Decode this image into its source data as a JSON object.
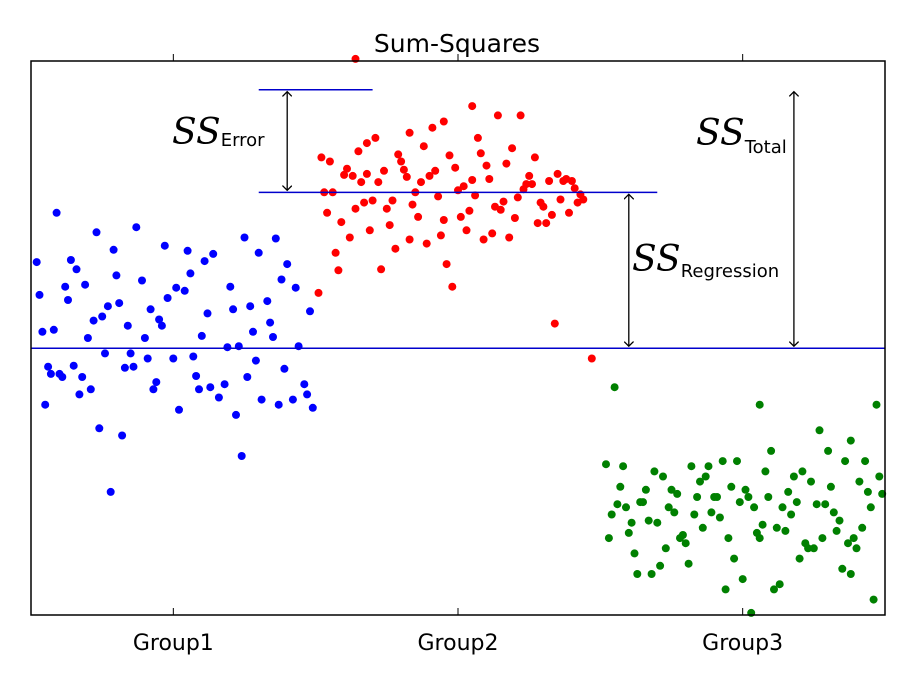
{
  "chart_data": {
    "type": "scatter",
    "title": "Sum-Squares",
    "xlabel": "",
    "ylabel": "",
    "categories": [
      "Group1",
      "Group2",
      "Group3"
    ],
    "xlim": [
      0,
      3
    ],
    "ylim": [
      -2.6,
      2.8
    ],
    "grid": false,
    "legend": "none",
    "grand_mean": 0.0,
    "group2_mean": 1.52,
    "group2_error_ref": 2.52,
    "series": [
      {
        "color": "#0000ff",
        "points": [
          [
            0.03,
            0.52
          ],
          [
            0.08,
            0.18
          ],
          [
            0.14,
            0.86
          ],
          [
            0.19,
            0.62
          ],
          [
            0.23,
            1.13
          ],
          [
            0.27,
            0.41
          ],
          [
            0.05,
            -0.55
          ],
          [
            0.11,
            -0.28
          ],
          [
            0.16,
            0.77
          ],
          [
            0.21,
            -0.4
          ],
          [
            0.25,
            0.31
          ],
          [
            0.29,
            0.96
          ],
          [
            0.33,
            -0.19
          ],
          [
            0.37,
            1.18
          ],
          [
            0.4,
            0.1
          ],
          [
            0.44,
            -0.33
          ],
          [
            0.48,
            0.49
          ],
          [
            0.52,
            -0.6
          ],
          [
            0.56,
            0.73
          ],
          [
            0.6,
            0.12
          ],
          [
            0.64,
            0.92
          ],
          [
            0.68,
            -0.35
          ],
          [
            0.71,
            0.38
          ],
          [
            0.75,
            1.08
          ],
          [
            0.79,
            -0.12
          ],
          [
            0.83,
            0.46
          ],
          [
            0.87,
            -0.55
          ],
          [
            0.9,
            0.82
          ],
          [
            0.94,
            0.02
          ],
          [
            0.98,
            0.36
          ],
          [
            0.07,
            -0.25
          ],
          [
            0.12,
            0.6
          ],
          [
            0.17,
            -0.45
          ],
          [
            0.22,
            0.27
          ],
          [
            0.26,
            -0.05
          ],
          [
            0.31,
            0.44
          ],
          [
            0.35,
            -0.05
          ],
          [
            0.39,
            0.66
          ],
          [
            0.43,
            -0.4
          ],
          [
            0.46,
            0.22
          ],
          [
            0.5,
            -0.1
          ],
          [
            0.54,
            0.56
          ],
          [
            0.58,
            -0.27
          ],
          [
            0.62,
            0.34
          ],
          [
            0.66,
            -0.48
          ],
          [
            0.7,
            0.6
          ],
          [
            0.73,
            0.02
          ],
          [
            0.77,
            0.41
          ],
          [
            0.81,
            -0.5
          ],
          [
            0.85,
            0.11
          ],
          [
            0.89,
            -0.2
          ],
          [
            0.93,
            0.59
          ],
          [
            0.97,
            -0.45
          ],
          [
            0.09,
            1.32
          ],
          [
            0.18,
            -0.28
          ],
          [
            0.28,
            -1.4
          ],
          [
            0.41,
            -0.1
          ],
          [
            0.55,
            0.95
          ],
          [
            0.74,
            -1.05
          ],
          [
            0.88,
            0.67
          ],
          [
            0.06,
            -0.18
          ],
          [
            0.13,
            0.47
          ],
          [
            0.24,
            -0.78
          ],
          [
            0.34,
            0.22
          ],
          [
            0.47,
            1.0
          ],
          [
            0.61,
            0.85
          ],
          [
            0.72,
            -0.65
          ],
          [
            0.84,
            0.25
          ],
          [
            0.96,
            -0.35
          ],
          [
            0.02,
            0.84
          ],
          [
            0.15,
            -0.17
          ],
          [
            0.3,
            0.71
          ],
          [
            0.42,
            0.38
          ],
          [
            0.57,
            -0.08
          ],
          [
            0.69,
            0.01
          ],
          [
            0.8,
            0.93
          ],
          [
            0.92,
            -0.5
          ],
          [
            0.2,
            0.1
          ],
          [
            0.36,
            -0.18
          ],
          [
            0.51,
            0.59
          ],
          [
            0.63,
            -0.38
          ],
          [
            0.76,
            -0.28
          ],
          [
            0.86,
            1.07
          ],
          [
            0.99,
            -0.58
          ],
          [
            0.04,
            0.16
          ],
          [
            0.1,
            -0.25
          ],
          [
            0.32,
            -0.85
          ],
          [
            0.45,
            0.28
          ],
          [
            0.59,
            -0.4
          ],
          [
            0.78,
            0.16
          ]
        ]
      },
      {
        "color": "#ff0000",
        "points": [
          [
            1.01,
            0.54
          ],
          [
            1.05,
            1.82
          ],
          [
            1.09,
            1.23
          ],
          [
            1.13,
            1.68
          ],
          [
            1.17,
            1.42
          ],
          [
            1.21,
            2.05
          ],
          [
            1.25,
            1.36
          ],
          [
            1.29,
            1.89
          ],
          [
            1.33,
            1.06
          ],
          [
            1.37,
            1.62
          ],
          [
            1.41,
            2.15
          ],
          [
            1.45,
            1.25
          ],
          [
            1.49,
            1.76
          ],
          [
            1.53,
            1.15
          ],
          [
            1.57,
            2.05
          ],
          [
            1.61,
            1.65
          ],
          [
            1.65,
            1.35
          ],
          [
            1.69,
            1.95
          ],
          [
            1.73,
            1.55
          ],
          [
            1.77,
            1.86
          ],
          [
            1.81,
            1.22
          ],
          [
            1.85,
            1.7
          ],
          [
            1.89,
            1.32
          ],
          [
            1.93,
            1.5
          ],
          [
            1.03,
            1.52
          ],
          [
            1.07,
            0.93
          ],
          [
            1.11,
            1.75
          ],
          [
            1.15,
            1.92
          ],
          [
            1.19,
            1.15
          ],
          [
            1.23,
            0.77
          ],
          [
            1.27,
            1.44
          ],
          [
            1.31,
            1.74
          ],
          [
            1.35,
            1.52
          ],
          [
            1.39,
            1.02
          ],
          [
            1.43,
            1.48
          ],
          [
            1.47,
            1.88
          ],
          [
            1.51,
            1.28
          ],
          [
            1.55,
            1.64
          ],
          [
            1.59,
            1.06
          ],
          [
            1.63,
            1.38
          ],
          [
            1.67,
            1.8
          ],
          [
            1.71,
            1.47
          ],
          [
            1.75,
            1.68
          ],
          [
            1.79,
            1.42
          ],
          [
            1.83,
            1.3
          ],
          [
            1.87,
            1.63
          ],
          [
            1.91,
            1.56
          ],
          [
            1.02,
            1.86
          ],
          [
            1.06,
            1.52
          ],
          [
            1.1,
            1.69
          ],
          [
            1.14,
            1.36
          ],
          [
            1.18,
            1.7
          ],
          [
            1.22,
            1.62
          ],
          [
            1.26,
            1.2
          ],
          [
            1.3,
            1.82
          ],
          [
            1.34,
            1.4
          ],
          [
            1.38,
            1.97
          ],
          [
            1.42,
            1.73
          ],
          [
            1.46,
            0.82
          ],
          [
            1.5,
            1.54
          ],
          [
            1.54,
            1.34
          ],
          [
            1.58,
            1.9
          ],
          [
            1.62,
            1.12
          ],
          [
            1.66,
            1.43
          ],
          [
            1.7,
            1.27
          ],
          [
            1.74,
            1.6
          ],
          [
            1.78,
            1.22
          ],
          [
            1.82,
            1.63
          ],
          [
            1.86,
            1.45
          ],
          [
            1.9,
            1.63
          ],
          [
            1.04,
            1.32
          ],
          [
            1.08,
            0.76
          ],
          [
            1.12,
            1.08
          ],
          [
            1.16,
            1.62
          ],
          [
            1.2,
            1.44
          ],
          [
            1.24,
            1.73
          ],
          [
            1.28,
            0.97
          ],
          [
            1.32,
            1.67
          ],
          [
            1.36,
            1.28
          ],
          [
            1.4,
            1.68
          ],
          [
            1.44,
            1.1
          ],
          [
            1.48,
            0.6
          ],
          [
            1.52,
            1.58
          ],
          [
            1.56,
            1.49
          ],
          [
            1.6,
            1.78
          ],
          [
            1.64,
            2.27
          ],
          [
            1.68,
            1.08
          ],
          [
            1.72,
            2.27
          ],
          [
            1.76,
            1.6
          ],
          [
            1.8,
            1.38
          ],
          [
            1.84,
            0.24
          ],
          [
            1.88,
            1.65
          ],
          [
            1.92,
            1.42
          ],
          [
            1.94,
            1.45
          ],
          [
            1.97,
            -0.1
          ],
          [
            1.55,
            2.36
          ],
          [
            1.33,
            2.1
          ],
          [
            1.45,
            2.21
          ],
          [
            1.18,
            2.0
          ],
          [
            1.14,
            2.82
          ]
        ]
      },
      {
        "color": "#008000",
        "points": [
          [
            2.02,
            -1.13
          ],
          [
            2.06,
            -1.52
          ],
          [
            2.1,
            -1.8
          ],
          [
            2.14,
            -1.5
          ],
          [
            2.18,
            -2.2
          ],
          [
            2.22,
            -1.25
          ],
          [
            2.26,
            -1.6
          ],
          [
            2.3,
            -1.9
          ],
          [
            2.34,
            -1.45
          ],
          [
            2.38,
            -1.15
          ],
          [
            2.42,
            -1.65
          ],
          [
            2.46,
            -1.35
          ],
          [
            2.5,
            -2.25
          ],
          [
            2.54,
            -1.55
          ],
          [
            2.58,
            -1.2
          ],
          [
            2.62,
            -1.75
          ],
          [
            2.66,
            -1.4
          ],
          [
            2.7,
            -2.05
          ],
          [
            2.74,
            -1.3
          ],
          [
            2.78,
            -1.85
          ],
          [
            2.82,
            -1.6
          ],
          [
            2.86,
            -1.1
          ],
          [
            2.9,
            -1.95
          ],
          [
            2.94,
            -1.4
          ],
          [
            2.98,
            -1.25
          ],
          [
            2.04,
            -1.62
          ],
          [
            2.08,
            -1.15
          ],
          [
            2.12,
            -2.0
          ],
          [
            2.16,
            -1.38
          ],
          [
            2.2,
            -1.7
          ],
          [
            2.24,
            -1.55
          ],
          [
            2.28,
            -1.85
          ],
          [
            2.32,
            -1.15
          ],
          [
            2.36,
            -1.75
          ],
          [
            2.4,
            -1.45
          ],
          [
            2.44,
            -2.35
          ],
          [
            2.48,
            -1.1
          ],
          [
            2.52,
            -1.45
          ],
          [
            2.56,
            -1.85
          ],
          [
            2.6,
            -1.0
          ],
          [
            2.64,
            -1.55
          ],
          [
            2.68,
            -1.25
          ],
          [
            2.72,
            -1.9
          ],
          [
            2.76,
            -1.52
          ],
          [
            2.8,
            -1.0
          ],
          [
            2.84,
            -1.68
          ],
          [
            2.88,
            -2.2
          ],
          [
            2.92,
            -1.75
          ],
          [
            2.96,
            -2.45
          ],
          [
            2.03,
            -1.85
          ],
          [
            2.07,
            -1.35
          ],
          [
            2.11,
            -1.7
          ],
          [
            2.15,
            -1.5
          ],
          [
            2.19,
            -1.2
          ],
          [
            2.23,
            -1.95
          ],
          [
            2.27,
            -1.42
          ],
          [
            2.31,
            -2.1
          ],
          [
            2.35,
            -1.3
          ],
          [
            2.39,
            -1.6
          ],
          [
            2.43,
            -1.1
          ],
          [
            2.47,
            -2.05
          ],
          [
            2.51,
            -1.38
          ],
          [
            2.55,
            -1.8
          ],
          [
            2.59,
            -1.45
          ],
          [
            2.63,
            -2.3
          ],
          [
            2.67,
            -1.62
          ],
          [
            2.71,
            -1.2
          ],
          [
            2.75,
            -1.95
          ],
          [
            2.79,
            -1.52
          ],
          [
            2.83,
            -1.78
          ],
          [
            2.87,
            -1.9
          ],
          [
            2.91,
            -1.3
          ],
          [
            2.95,
            -1.55
          ],
          [
            2.99,
            -1.42
          ],
          [
            2.05,
            -0.38
          ],
          [
            2.09,
            -1.55
          ],
          [
            2.13,
            -2.2
          ],
          [
            2.17,
            -1.68
          ],
          [
            2.21,
            -2.12
          ],
          [
            2.25,
            -1.38
          ],
          [
            2.29,
            -1.82
          ],
          [
            2.33,
            -1.62
          ],
          [
            2.37,
            -1.25
          ],
          [
            2.41,
            -1.45
          ],
          [
            2.45,
            -1.85
          ],
          [
            2.49,
            -1.5
          ],
          [
            2.53,
            -2.58
          ],
          [
            2.57,
            -1.72
          ],
          [
            2.61,
            -2.35
          ],
          [
            2.65,
            -1.78
          ],
          [
            2.69,
            -1.5
          ],
          [
            2.73,
            -1.95
          ],
          [
            2.77,
            -0.8
          ],
          [
            2.81,
            -1.35
          ],
          [
            2.85,
            -2.15
          ],
          [
            2.89,
            -1.85
          ],
          [
            2.93,
            -1.1
          ],
          [
            2.97,
            -0.55
          ],
          [
            2.88,
            -0.9
          ],
          [
            2.56,
            -0.55
          ]
        ]
      }
    ],
    "annotations": [
      {
        "label": "SS",
        "sub": "Error"
      },
      {
        "label": "SS",
        "sub": "Total"
      },
      {
        "label": "SS",
        "sub": "Regression"
      }
    ],
    "colors": {
      "mean_line": "#0000cc",
      "arrow": "#000000",
      "frame": "#000000"
    }
  }
}
